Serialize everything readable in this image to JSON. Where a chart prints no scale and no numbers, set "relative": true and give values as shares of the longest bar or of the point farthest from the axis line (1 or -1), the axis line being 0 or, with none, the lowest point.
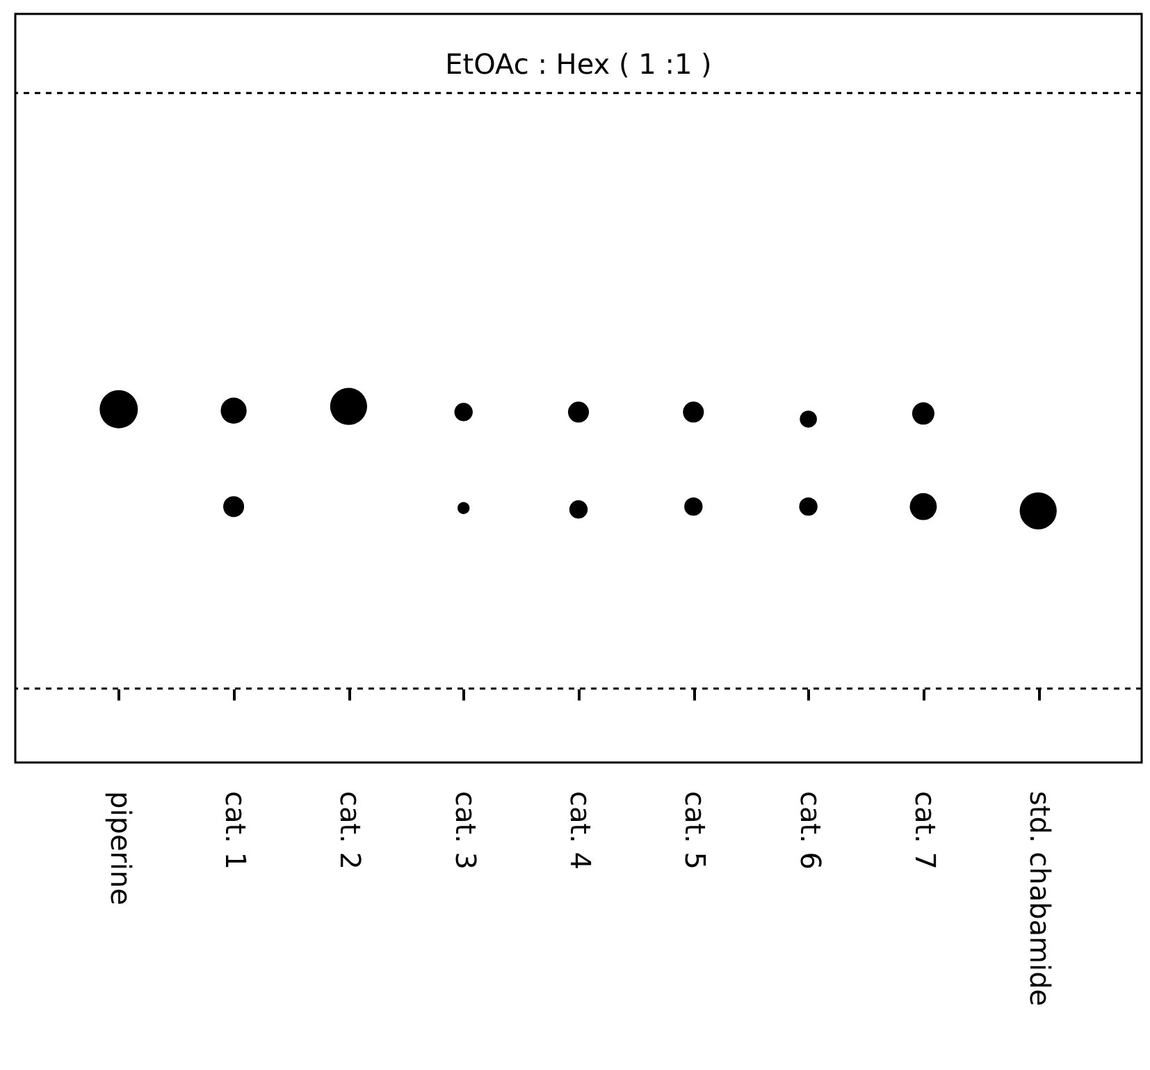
{
  "chart_data": {
    "type": "bubble",
    "title": "EtOAc : Hex ( 1 :1 )",
    "relative": true,
    "categories": [
      "piperine",
      "cat. 1",
      "cat. 2",
      "cat. 3",
      "cat. 4",
      "cat. 5",
      "cat. 6",
      "cat. 7",
      "std. chabamide"
    ],
    "series": [
      {
        "color": "#000000",
        "values": [
          0.99,
          0.985,
          1,
          0.98,
          0.98,
          0.98,
          0.955,
          0.975,
          null
        ],
        "sizes": [
          1,
          0.46,
          0.94,
          0.23,
          0.3,
          0.3,
          0.2,
          0.34,
          null
        ]
      },
      {
        "color": "#000000",
        "values": [
          null,
          0.645,
          null,
          0.64,
          0.635,
          0.645,
          0.645,
          0.645,
          0.63
        ],
        "sizes": [
          null,
          0.3,
          null,
          0.1,
          0.23,
          0.23,
          0.23,
          0.5,
          0.94
        ]
      }
    ],
    "ref_lines": [
      {
        "axis": "y",
        "value": 0,
        "color": "#000000",
        "line_style": "dashed"
      },
      {
        "axis": "y",
        "value": 2.11,
        "color": "#000000",
        "line_style": "dashed"
      }
    ],
    "grid": false,
    "legend": false
  }
}
